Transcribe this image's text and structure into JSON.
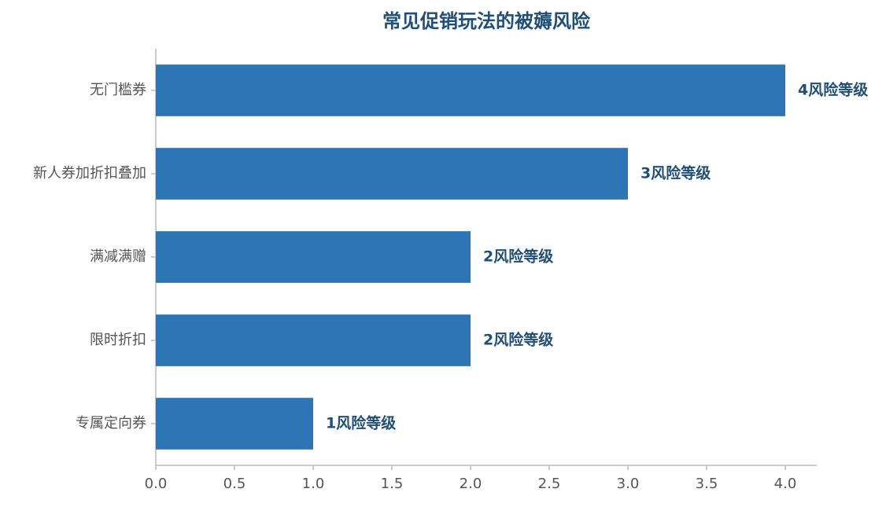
{
  "chart_data": {
    "type": "hbar",
    "title": "常见促销玩法的被薅风险",
    "categories": [
      "无门槛券",
      "新人券加折扣叠加",
      "满减满赠",
      "限时折扣",
      "专属定向券"
    ],
    "values": [
      4,
      3,
      2,
      2,
      1
    ],
    "value_labels": [
      "4风险等级",
      "3风险等级",
      "2风险等级",
      "2风险等级",
      "1风险等级"
    ],
    "color": "#2e75b6",
    "xlim": [
      0,
      4.2
    ],
    "xticks": [
      {
        "value": 0,
        "label": "0.0"
      },
      {
        "value": 0.5,
        "label": "0.5"
      },
      {
        "value": 1,
        "label": "1.0"
      },
      {
        "value": 1.5,
        "label": "1.5"
      },
      {
        "value": 2,
        "label": "2.0"
      },
      {
        "value": 2.5,
        "label": "2.5"
      },
      {
        "value": 3,
        "label": "3.0"
      },
      {
        "value": 3.5,
        "label": "3.5"
      },
      {
        "value": 4,
        "label": "4.0"
      }
    ],
    "grid": false
  }
}
